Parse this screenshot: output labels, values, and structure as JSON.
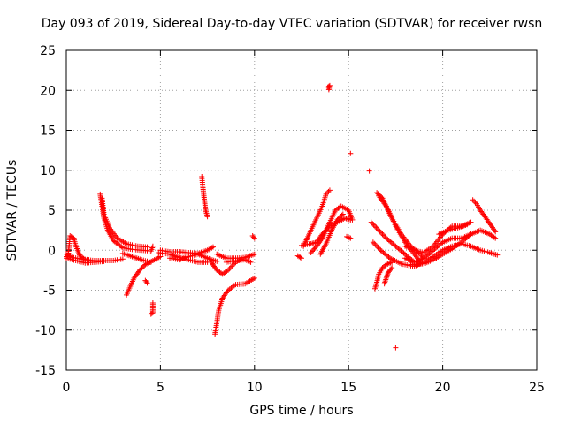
{
  "chart_data": {
    "type": "scatter",
    "title": "Day 093 of 2019, Sidereal Day-to-day VTEC variation (SDTVAR) for receiver rwsn",
    "xlabel": "GPS time / hours",
    "ylabel": "SDTVAR / TECUs",
    "xlim": [
      0,
      25
    ],
    "ylim": [
      -15,
      25
    ],
    "xticks": [
      0,
      5,
      10,
      15,
      20,
      25
    ],
    "yticks": [
      -15,
      -10,
      -5,
      0,
      5,
      10,
      15,
      20,
      25
    ],
    "grid": true,
    "marker": "+",
    "series": [
      {
        "name": "SDTVAR",
        "color": "#ff0000",
        "tracks": [
          [
            [
              0.0,
              -0.8
            ],
            [
              0.1,
              -0.6
            ],
            [
              0.2,
              1.8
            ],
            [
              0.4,
              1.5
            ],
            [
              0.5,
              0.6
            ],
            [
              0.7,
              -0.6
            ],
            [
              1.0,
              -1.2
            ],
            [
              1.5,
              -1.3
            ],
            [
              2.0,
              -1.3
            ],
            [
              2.5,
              -1.3
            ],
            [
              3.0,
              -1.1
            ]
          ],
          [
            [
              0.0,
              -1.0
            ],
            [
              0.5,
              -1.3
            ],
            [
              1.0,
              -1.6
            ],
            [
              1.5,
              -1.5
            ],
            [
              2.0,
              -1.4
            ]
          ],
          [
            [
              0.0,
              -0.5
            ],
            [
              0.3,
              -0.9
            ],
            [
              0.8,
              -1.1
            ],
            [
              1.2,
              -1.2
            ]
          ],
          [
            [
              1.8,
              7.0
            ],
            [
              1.9,
              5.5
            ],
            [
              2.0,
              4.0
            ],
            [
              2.2,
              2.5
            ],
            [
              2.5,
              1.2
            ],
            [
              3.0,
              0.3
            ],
            [
              3.5,
              0.1
            ],
            [
              4.0,
              0.0
            ],
            [
              4.5,
              -0.1
            ],
            [
              4.6,
              0.5
            ]
          ],
          [
            [
              1.9,
              6.5
            ],
            [
              2.0,
              4.5
            ],
            [
              2.3,
              2.8
            ],
            [
              2.7,
              1.5
            ],
            [
              3.2,
              0.8
            ],
            [
              3.8,
              0.5
            ],
            [
              4.3,
              0.4
            ]
          ],
          [
            [
              3.2,
              -5.6
            ],
            [
              3.4,
              -4.5
            ],
            [
              3.6,
              -3.5
            ],
            [
              3.9,
              -2.5
            ],
            [
              4.2,
              -1.8
            ],
            [
              4.6,
              -1.3
            ],
            [
              5.0,
              -0.8
            ]
          ],
          [
            [
              3.0,
              -0.4
            ],
            [
              3.5,
              -0.8
            ],
            [
              4.0,
              -1.2
            ],
            [
              4.5,
              -1.5
            ]
          ],
          [
            [
              4.2,
              -3.8
            ],
            [
              4.3,
              -4.1
            ]
          ],
          [
            [
              4.6,
              -6.6
            ],
            [
              4.6,
              -7.2
            ],
            [
              4.6,
              -7.8
            ],
            [
              4.5,
              -8.0
            ]
          ],
          [
            [
              4.9,
              -0.3
            ],
            [
              5.5,
              -0.5
            ],
            [
              6.0,
              -0.9
            ],
            [
              6.5,
              -1.2
            ],
            [
              7.0,
              -1.5
            ],
            [
              7.5,
              -1.5
            ]
          ],
          [
            [
              5.0,
              0.0
            ],
            [
              5.5,
              -0.2
            ],
            [
              6.0,
              -0.2
            ],
            [
              6.5,
              -0.3
            ],
            [
              7.0,
              -0.4
            ],
            [
              7.5,
              0.0
            ],
            [
              7.8,
              0.4
            ]
          ],
          [
            [
              5.5,
              -1.0
            ],
            [
              6.0,
              -1.2
            ],
            [
              6.5,
              -0.8
            ],
            [
              7.0,
              -0.5
            ],
            [
              7.5,
              -1.0
            ],
            [
              8.0,
              -1.4
            ]
          ],
          [
            [
              7.2,
              9.2
            ],
            [
              7.25,
              8.0
            ],
            [
              7.3,
              7.0
            ],
            [
              7.35,
              6.0
            ],
            [
              7.4,
              5.0
            ],
            [
              7.5,
              4.2
            ]
          ],
          [
            [
              7.9,
              -10.5
            ],
            [
              8.0,
              -9.0
            ],
            [
              8.1,
              -7.5
            ],
            [
              8.3,
              -6.0
            ],
            [
              8.6,
              -5.0
            ],
            [
              9.0,
              -4.3
            ],
            [
              9.5,
              -4.2
            ],
            [
              10.0,
              -3.5
            ]
          ],
          [
            [
              7.7,
              -1.5
            ],
            [
              8.0,
              -2.5
            ],
            [
              8.3,
              -3.0
            ],
            [
              8.6,
              -2.5
            ],
            [
              9.0,
              -1.5
            ],
            [
              9.4,
              -1.0
            ]
          ],
          [
            [
              8.0,
              -0.5
            ],
            [
              8.5,
              -1.0
            ],
            [
              9.0,
              -1.0
            ],
            [
              9.5,
              -0.9
            ],
            [
              10.0,
              -0.5
            ]
          ],
          [
            [
              8.5,
              -1.5
            ],
            [
              9.0,
              -1.3
            ],
            [
              9.5,
              -1.2
            ],
            [
              9.8,
              -1.5
            ]
          ],
          [
            [
              9.9,
              1.8
            ],
            [
              10.0,
              1.5
            ]
          ],
          [
            [
              12.3,
              -0.7
            ],
            [
              12.5,
              -1.0
            ]
          ],
          [
            [
              12.6,
              0.5
            ],
            [
              12.8,
              1.5
            ],
            [
              13.0,
              2.5
            ],
            [
              13.3,
              4.0
            ],
            [
              13.6,
              5.5
            ],
            [
              13.8,
              7.0
            ],
            [
              14.0,
              7.5
            ]
          ],
          [
            [
              12.5,
              0.6
            ],
            [
              13.0,
              0.8
            ],
            [
              13.3,
              1.0
            ],
            [
              13.6,
              2.0
            ],
            [
              14.0,
              3.0
            ],
            [
              14.4,
              3.5
            ],
            [
              14.8,
              4.0
            ],
            [
              15.1,
              3.8
            ]
          ],
          [
            [
              13.0,
              -0.3
            ],
            [
              13.3,
              0.5
            ],
            [
              13.6,
              1.5
            ],
            [
              14.0,
              3.5
            ],
            [
              14.3,
              5.0
            ],
            [
              14.6,
              5.5
            ],
            [
              15.0,
              5.0
            ],
            [
              15.2,
              3.8
            ]
          ],
          [
            [
              13.5,
              -0.5
            ],
            [
              13.8,
              0.8
            ],
            [
              14.1,
              2.5
            ],
            [
              14.4,
              3.8
            ],
            [
              14.7,
              4.5
            ]
          ],
          [
            [
              13.9,
              20.4
            ],
            [
              14.0,
              20.6
            ],
            [
              13.95,
              20.1
            ]
          ],
          [
            [
              14.9,
              1.7
            ],
            [
              15.1,
              1.5
            ]
          ],
          [
            [
              15.1,
              12.1
            ]
          ],
          [
            [
              16.1,
              9.9
            ]
          ],
          [
            [
              16.5,
              7.2
            ],
            [
              16.8,
              6.5
            ],
            [
              17.1,
              5.0
            ],
            [
              17.5,
              3.0
            ],
            [
              18.0,
              1.0
            ],
            [
              18.5,
              -0.5
            ],
            [
              18.8,
              -1.5
            ]
          ],
          [
            [
              16.6,
              6.8
            ],
            [
              17.0,
              5.5
            ],
            [
              17.3,
              4.0
            ],
            [
              17.8,
              2.0
            ],
            [
              18.3,
              0.5
            ],
            [
              18.8,
              -0.5
            ],
            [
              19.0,
              -1.0
            ]
          ],
          [
            [
              16.2,
              3.5
            ],
            [
              16.6,
              2.5
            ],
            [
              17.0,
              1.5
            ],
            [
              17.5,
              0.5
            ],
            [
              18.0,
              -0.5
            ],
            [
              18.5,
              -1.5
            ]
          ],
          [
            [
              16.3,
              1.0
            ],
            [
              16.7,
              0.0
            ],
            [
              17.2,
              -1.0
            ],
            [
              17.8,
              -1.7
            ],
            [
              18.4,
              -2.0
            ]
          ],
          [
            [
              16.4,
              -4.8
            ],
            [
              16.5,
              -4.0
            ],
            [
              16.6,
              -3.0
            ],
            [
              16.8,
              -2.2
            ],
            [
              17.0,
              -1.8
            ],
            [
              17.3,
              -1.5
            ]
          ],
          [
            [
              16.9,
              -4.2
            ],
            [
              17.0,
              -3.5
            ],
            [
              17.1,
              -2.8
            ],
            [
              17.3,
              -2.2
            ]
          ],
          [
            [
              17.5,
              -12.2
            ]
          ],
          [
            [
              18.0,
              -1.0
            ],
            [
              18.5,
              -1.5
            ],
            [
              19.0,
              -1.0
            ],
            [
              19.5,
              0.0
            ],
            [
              20.0,
              1.0
            ],
            [
              20.5,
              1.5
            ],
            [
              21.0,
              1.5
            ],
            [
              21.5,
              2.0
            ],
            [
              22.0,
              2.5
            ],
            [
              22.5,
              2.0
            ],
            [
              22.8,
              1.5
            ]
          ],
          [
            [
              18.5,
              -2.0
            ],
            [
              19.0,
              -1.5
            ],
            [
              19.5,
              -0.8
            ],
            [
              20.0,
              0.0
            ],
            [
              20.5,
              0.5
            ],
            [
              21.0,
              0.8
            ],
            [
              21.5,
              0.5
            ],
            [
              22.0,
              0.0
            ],
            [
              22.5,
              -0.3
            ],
            [
              22.9,
              -0.6
            ]
          ],
          [
            [
              18.0,
              0.5
            ],
            [
              18.5,
              0.0
            ],
            [
              19.0,
              -0.3
            ],
            [
              19.5,
              0.5
            ],
            [
              20.0,
              2.0
            ],
            [
              20.5,
              3.0
            ],
            [
              21.0,
              3.0
            ],
            [
              21.5,
              3.5
            ]
          ],
          [
            [
              18.3,
              -1.8
            ],
            [
              19.0,
              -1.7
            ],
            [
              19.5,
              -1.2
            ],
            [
              20.0,
              -0.5
            ],
            [
              20.5,
              0.2
            ],
            [
              21.0,
              1.0
            ],
            [
              21.5,
              2.0
            ]
          ],
          [
            [
              21.6,
              6.3
            ],
            [
              21.8,
              5.8
            ],
            [
              22.0,
              5.0
            ],
            [
              22.3,
              4.0
            ],
            [
              22.6,
              3.0
            ],
            [
              22.8,
              2.3
            ]
          ],
          [
            [
              19.8,
              2.0
            ],
            [
              20.3,
              2.5
            ],
            [
              20.8,
              2.8
            ],
            [
              21.3,
              3.2
            ]
          ]
        ]
      }
    ]
  }
}
